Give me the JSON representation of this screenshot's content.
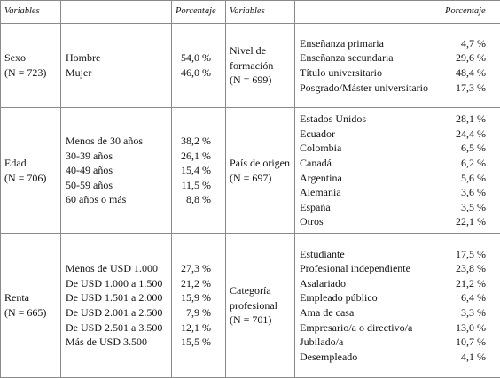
{
  "header": [
    "Variables",
    "Porcentaje",
    "Variables",
    "Porcentaje"
  ],
  "rows": [
    {
      "left": {
        "variable": "Sexo",
        "n": "(N = 723)",
        "categories": [
          "Hombre",
          "Mujer"
        ],
        "percentages": [
          "54,0 %",
          "46,0 %"
        ]
      },
      "right": {
        "variable": "Nivel de formación",
        "n": "(N = 699)",
        "categories": [
          "Enseñanza primaria",
          "Enseñanza secundaria",
          "Título universitario",
          "Posgrado/Máster universitario"
        ],
        "percentages": [
          "4,7 %",
          "29,6 %",
          "48,4 %",
          "17,3 %"
        ]
      }
    },
    {
      "left": {
        "variable": "Edad",
        "n": "(N = 706)",
        "categories": [
          "Menos de 30 años",
          "30-39 años",
          "40-49 años",
          "50-59 años",
          "60 años o más"
        ],
        "percentages": [
          "38,2 %",
          "26,1 %",
          "15,4 %",
          "11,5 %",
          "8,8 %"
        ]
      },
      "right": {
        "variable": "País de origen",
        "n": "(N = 697)",
        "categories": [
          "Estados Unidos",
          "Ecuador",
          "Colombia",
          "Canadá",
          "Argentina",
          "Alemania",
          "España",
          "Otros"
        ],
        "percentages": [
          "28,1 %",
          "24,4 %",
          "6,5 %",
          "6,2 %",
          "5,6 %",
          "3,6 %",
          "3,5 %",
          "22,1 %"
        ]
      }
    },
    {
      "left": {
        "variable": "Renta",
        "n": "(N = 665)",
        "categories": [
          "Menos de USD 1.000",
          "De USD 1.000 a 1.500",
          "De USD 1.501 a 2.000",
          "De USD 2.001 a 2.500",
          "De USD 2.501 a 3.500",
          "Más de USD 3.500"
        ],
        "percentages": [
          "27,3 %",
          "21,2 %",
          "15,9 %",
          "7,9 %",
          "12,1 %",
          "15,5 %"
        ]
      },
      "right": {
        "variable": "Categoría profesional",
        "n": "(N = 701)",
        "categories": [
          "Estudiante",
          "Profesional independiente",
          "Asalariado",
          "Empleado público",
          "Ama de casa",
          "Empresario/a o directivo/a",
          "Jubilado/a",
          "Desempleado"
        ],
        "percentages": [
          "17,5 %",
          "23,8 %",
          "21,2 %",
          "6,4 %",
          "3,3 %",
          "13,0 %",
          "10,7 %",
          "4,1 %"
        ]
      }
    }
  ]
}
